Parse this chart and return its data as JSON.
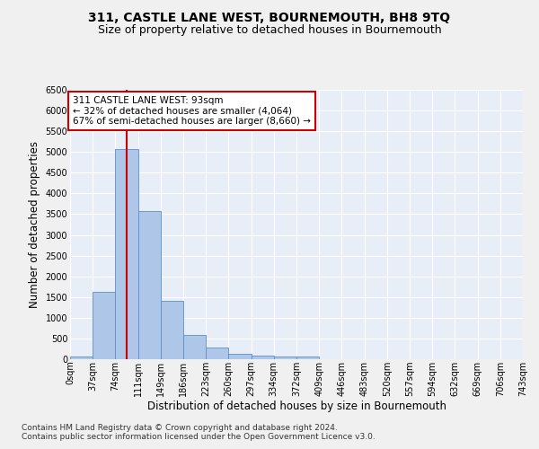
{
  "title": "311, CASTLE LANE WEST, BOURNEMOUTH, BH8 9TQ",
  "subtitle": "Size of property relative to detached houses in Bournemouth",
  "xlabel": "Distribution of detached houses by size in Bournemouth",
  "ylabel": "Number of detached properties",
  "footer_line1": "Contains HM Land Registry data © Crown copyright and database right 2024.",
  "footer_line2": "Contains public sector information licensed under the Open Government Licence v3.0.",
  "bar_values": [
    75,
    1625,
    5075,
    3575,
    1400,
    575,
    275,
    130,
    90,
    65,
    65,
    0,
    0,
    0,
    0,
    0,
    0,
    0,
    0,
    0
  ],
  "bar_labels": [
    "0sqm",
    "37sqm",
    "74sqm",
    "111sqm",
    "149sqm",
    "186sqm",
    "223sqm",
    "260sqm",
    "297sqm",
    "334sqm",
    "372sqm",
    "409sqm",
    "446sqm",
    "483sqm",
    "520sqm",
    "557sqm",
    "594sqm",
    "632sqm",
    "669sqm",
    "706sqm",
    "743sqm"
  ],
  "bar_color": "#aec6e8",
  "bar_edge_color": "#5b8fc9",
  "red_line_x": 93,
  "ylim_max": 6500,
  "yticks": [
    0,
    500,
    1000,
    1500,
    2000,
    2500,
    3000,
    3500,
    4000,
    4500,
    5000,
    5500,
    6000,
    6500
  ],
  "annotation_line1": "311 CASTLE LANE WEST: 93sqm",
  "annotation_line2": "← 32% of detached houses are smaller (4,064)",
  "annotation_line3": "67% of semi-detached houses are larger (8,660) →",
  "bg_color": "#e8eef8",
  "grid_color": "#ffffff",
  "fig_bg_color": "#f0f0f0",
  "title_fontsize": 10,
  "subtitle_fontsize": 9,
  "axis_label_fontsize": 8.5,
  "tick_fontsize": 7,
  "annotation_fontsize": 7.5,
  "footer_fontsize": 6.5
}
